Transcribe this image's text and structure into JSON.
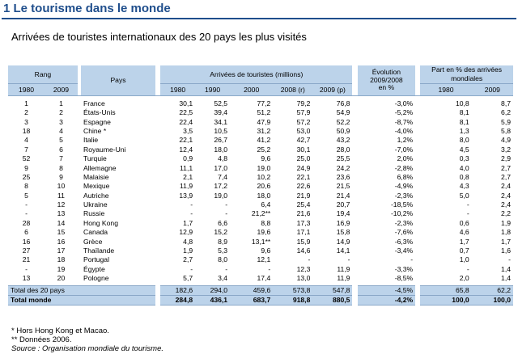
{
  "title": "1 Le tourisme dans le monde",
  "subtitle": "Arrivées de touristes internationaux des 20 pays les plus visités",
  "headers": {
    "rang": "Rang",
    "rang_1980": "1980",
    "rang_2009": "2009",
    "pays": "Pays",
    "arrivees": "Arrivées de touristes (millions)",
    "y1980": "1980",
    "y1990": "1990",
    "y2000": "2000",
    "y2008": "2008 (r)",
    "y2009": "2009 (p)",
    "evolution_line1": "Évolution",
    "evolution_line2": "2009/2008",
    "evolution_line3": "en %",
    "part": "Part en % des arrivées mondiales",
    "part_1980": "1980",
    "part_2009": "2009"
  },
  "rows": [
    [
      "1",
      "1",
      "France",
      "30,1",
      "52,5",
      "77,2",
      "79,2",
      "76,8",
      "-3,0%",
      "10,8",
      "8,7"
    ],
    [
      "2",
      "2",
      "États-Unis",
      "22,5",
      "39,4",
      "51,2",
      "57,9",
      "54,9",
      "-5,2%",
      "8,1",
      "6,2"
    ],
    [
      "3",
      "3",
      "Espagne",
      "22,4",
      "34,1",
      "47,9",
      "57,2",
      "52,2",
      "-8,7%",
      "8,1",
      "5,9"
    ],
    [
      "18",
      "4",
      "Chine *",
      "3,5",
      "10,5",
      "31,2",
      "53,0",
      "50,9",
      "-4,0%",
      "1,3",
      "5,8"
    ],
    [
      "4",
      "5",
      "Italie",
      "22,1",
      "26,7",
      "41,2",
      "42,7",
      "43,2",
      "1,2%",
      "8,0",
      "4,9"
    ],
    [
      "7",
      "6",
      "Royaume-Uni",
      "12,4",
      "18,0",
      "25,2",
      "30,1",
      "28,0",
      "-7,0%",
      "4,5",
      "3,2"
    ],
    [
      "52",
      "7",
      "Turquie",
      "0,9",
      "4,8",
      "9,6",
      "25,0",
      "25,5",
      "2,0%",
      "0,3",
      "2,9"
    ],
    [
      "9",
      "8",
      "Allemagne",
      "11,1",
      "17,0",
      "19,0",
      "24,9",
      "24,2",
      "-2,8%",
      "4,0",
      "2,7"
    ],
    [
      "25",
      "9",
      "Malaisie",
      "2,1",
      "7,4",
      "10,2",
      "22,1",
      "23,6",
      "6,8%",
      "0,8",
      "2,7"
    ],
    [
      "8",
      "10",
      "Mexique",
      "11,9",
      "17,2",
      "20,6",
      "22,6",
      "21,5",
      "-4,9%",
      "4,3",
      "2,4"
    ],
    [
      "5",
      "11",
      "Autriche",
      "13,9",
      "19,0",
      "18,0",
      "21,9",
      "21,4",
      "-2,3%",
      "5,0",
      "2,4"
    ],
    [
      "-",
      "12",
      "Ukraine",
      "-",
      "-",
      "6,4",
      "25,4",
      "20,7",
      "-18,5%",
      "-",
      "2,4"
    ],
    [
      "-",
      "13",
      "Russie",
      "-",
      "-",
      "21,2**",
      "21,6",
      "19,4",
      "-10,2%",
      "-",
      "2,2"
    ],
    [
      "28",
      "14",
      "Hong Kong",
      "1,7",
      "6,6",
      "8,8",
      "17,3",
      "16,9",
      "-2,3%",
      "0,6",
      "1,9"
    ],
    [
      "6",
      "15",
      "Canada",
      "12,9",
      "15,2",
      "19,6",
      "17,1",
      "15,8",
      "-7,6%",
      "4,6",
      "1,8"
    ],
    [
      "16",
      "16",
      "Grèce",
      "4,8",
      "8,9",
      "13,1**",
      "15,9",
      "14,9",
      "-6,3%",
      "1,7",
      "1,7"
    ],
    [
      "27",
      "17",
      "Thaïlande",
      "1,9",
      "5,3",
      "9,6",
      "14,6",
      "14,1",
      "-3,4%",
      "0,7",
      "1,6"
    ],
    [
      "21",
      "18",
      "Portugal",
      "2,7",
      "8,0",
      "12,1",
      "-",
      "-",
      "-",
      "1,0",
      "-"
    ],
    [
      "-",
      "19",
      "Égypte",
      "-",
      "-",
      "-",
      "12,3",
      "11,9",
      "-3,3%",
      "-",
      "1,4"
    ],
    [
      "13",
      "20",
      "Pologne",
      "5,7",
      "3,4",
      "17,4",
      "13,0",
      "11,9",
      "-8,5%",
      "2,0",
      "1,4"
    ]
  ],
  "totals": [
    {
      "label": "Total des 20 pays",
      "v1980": "182,6",
      "v1990": "294,0",
      "v2000": "459,6",
      "v2008": "573,8",
      "v2009": "547,8",
      "evol": "-4,5%",
      "p1980": "65,8",
      "p2009": "62,2"
    },
    {
      "label": "Total monde",
      "v1980": "284,8",
      "v1990": "436,1",
      "v2000": "683,7",
      "v2008": "918,8",
      "v2009": "880,5",
      "evol": "-4,2%",
      "p1980": "100,0",
      "p2009": "100,0"
    }
  ],
  "notes": {
    "note1": "* Hors Hong Kong et Macao.",
    "note2": "** Données 2006.",
    "source": "Source : Organisation mondiale du tourisme."
  },
  "colors": {
    "title": "#1f4e8c",
    "header_bg": "#bcd3ea"
  }
}
